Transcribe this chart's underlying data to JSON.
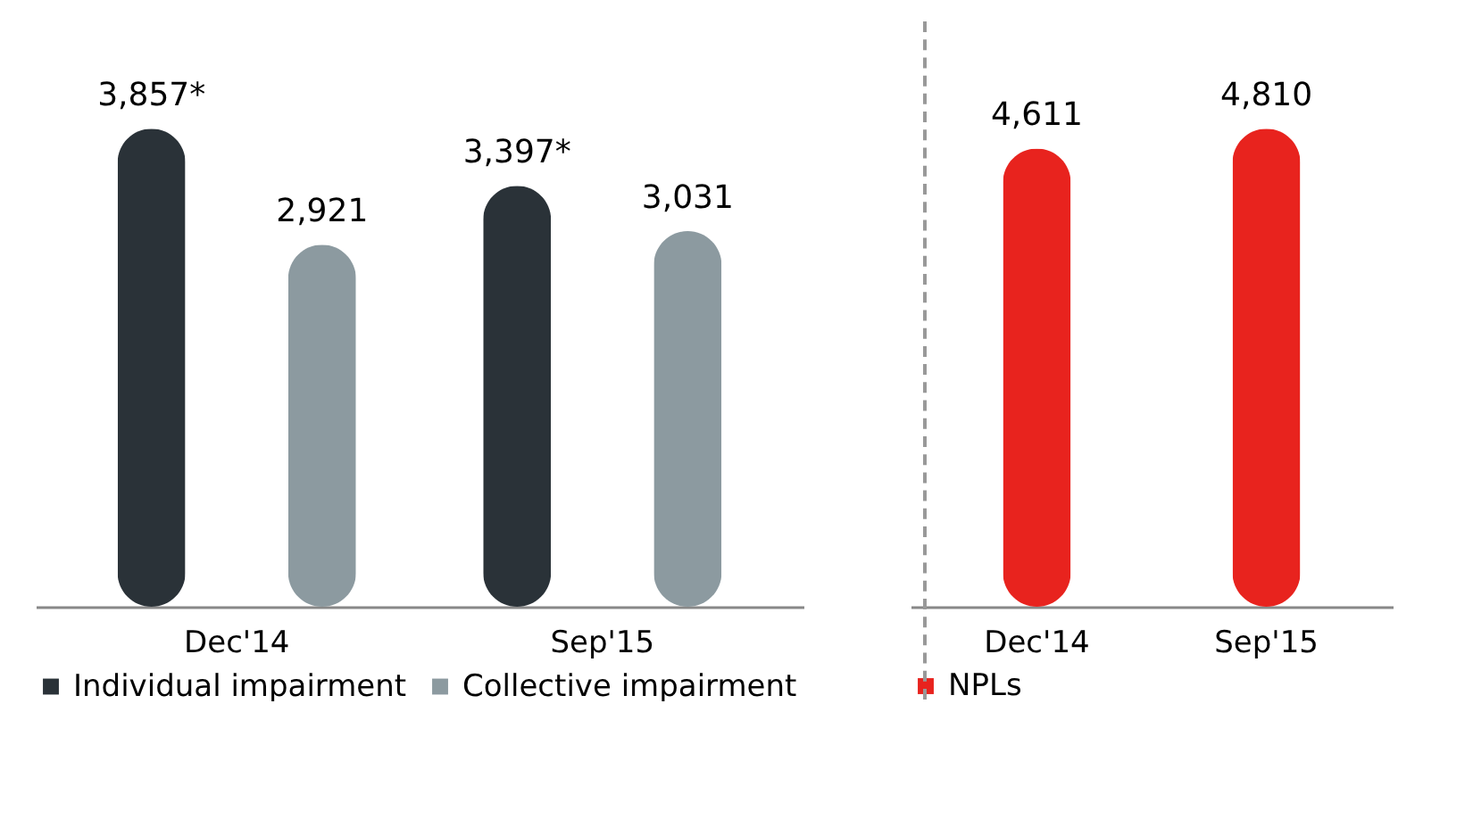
{
  "chart_data": [
    {
      "type": "bar",
      "categories": [
        "Dec'14",
        "Sep'15"
      ],
      "legend": "bottom",
      "series": [
        {
          "name": "Individual impairment",
          "color": "#2a3238",
          "values": [
            3857,
            3397
          ],
          "value_labels": [
            "3,857*",
            "3,397*"
          ]
        },
        {
          "name": "Collective impairment",
          "color": "#8c9aa0",
          "values": [
            2921,
            3031
          ],
          "value_labels": [
            "2,921",
            "3,031"
          ]
        }
      ]
    },
    {
      "type": "bar",
      "categories": [
        "Dec'14",
        "Sep'15"
      ],
      "legend": "bottom",
      "series": [
        {
          "name": "NPLs",
          "color": "#e8231e",
          "values": [
            4611,
            4810
          ],
          "value_labels": [
            "4,611",
            "4,810"
          ]
        }
      ]
    }
  ]
}
